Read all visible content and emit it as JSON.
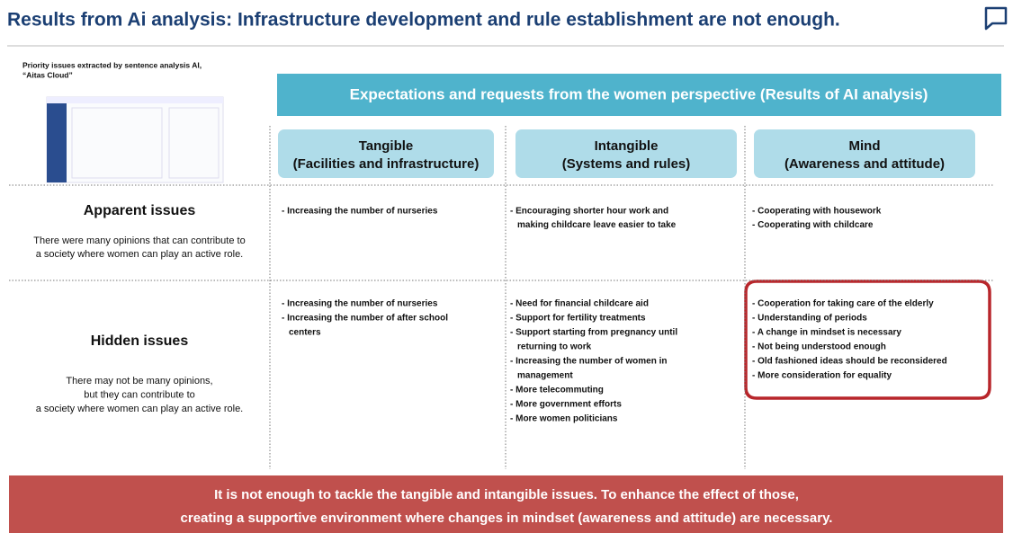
{
  "header": {
    "title": "Results from Ai analysis: Infrastructure development and rule establishment are not enough."
  },
  "note": [
    "Priority issues extracted by sentence analysis AI,",
    "“Aitas Cloud”"
  ],
  "banner": "Expectations and requests from the women perspective (Results of AI analysis)",
  "columns": [
    {
      "title": "Tangible",
      "subtitle": "(Facilities and infrastructure)"
    },
    {
      "title": "Intangible",
      "subtitle": "(Systems and rules)"
    },
    {
      "title": "Mind",
      "subtitle": "(Awareness and attitude)"
    }
  ],
  "rows": [
    {
      "title": "Apparent issues",
      "description": [
        "There were many opinions that can contribute to",
        "a society where women can play an active role."
      ],
      "cells": [
        [
          [
            "- Increasing the number of nurseries"
          ]
        ],
        [
          [
            "- Encouraging shorter hour work and",
            "making childcare leave easier to take"
          ]
        ],
        [
          [
            "- Cooperating with housework"
          ],
          [
            "- Cooperating with childcare"
          ]
        ]
      ]
    },
    {
      "title": "Hidden issues",
      "description": [
        "There may not be many opinions,",
        "but they can contribute to",
        "a society where women can play an active role."
      ],
      "cells": [
        [
          [
            "- Increasing the number of nurseries"
          ],
          [
            "- Increasing the number of after school",
            "centers"
          ]
        ],
        [
          [
            "- Need for financial childcare aid"
          ],
          [
            "- Support for fertility treatments"
          ],
          [
            "- Support starting from pregnancy until",
            "returning to work"
          ],
          [
            "- Increasing the number of women in",
            "management"
          ],
          [
            "- More telecommuting"
          ],
          [
            "- More government efforts"
          ],
          [
            "- More women politicians"
          ]
        ],
        [
          [
            "- Cooperation for taking care of the elderly"
          ],
          [
            "- Understanding of periods"
          ],
          [
            "- A change in mindset is necessary"
          ],
          [
            "- Not being understood enough"
          ],
          [
            "- Old fashioned ideas should be reconsidered"
          ],
          [
            "- More consideration for equality"
          ]
        ]
      ]
    }
  ],
  "footer": [
    "It is not enough to tackle the tangible and intangible issues. To enhance the effect of those,",
    "creating a supportive environment where changes in mindset (awareness and attitude) are necessary."
  ]
}
